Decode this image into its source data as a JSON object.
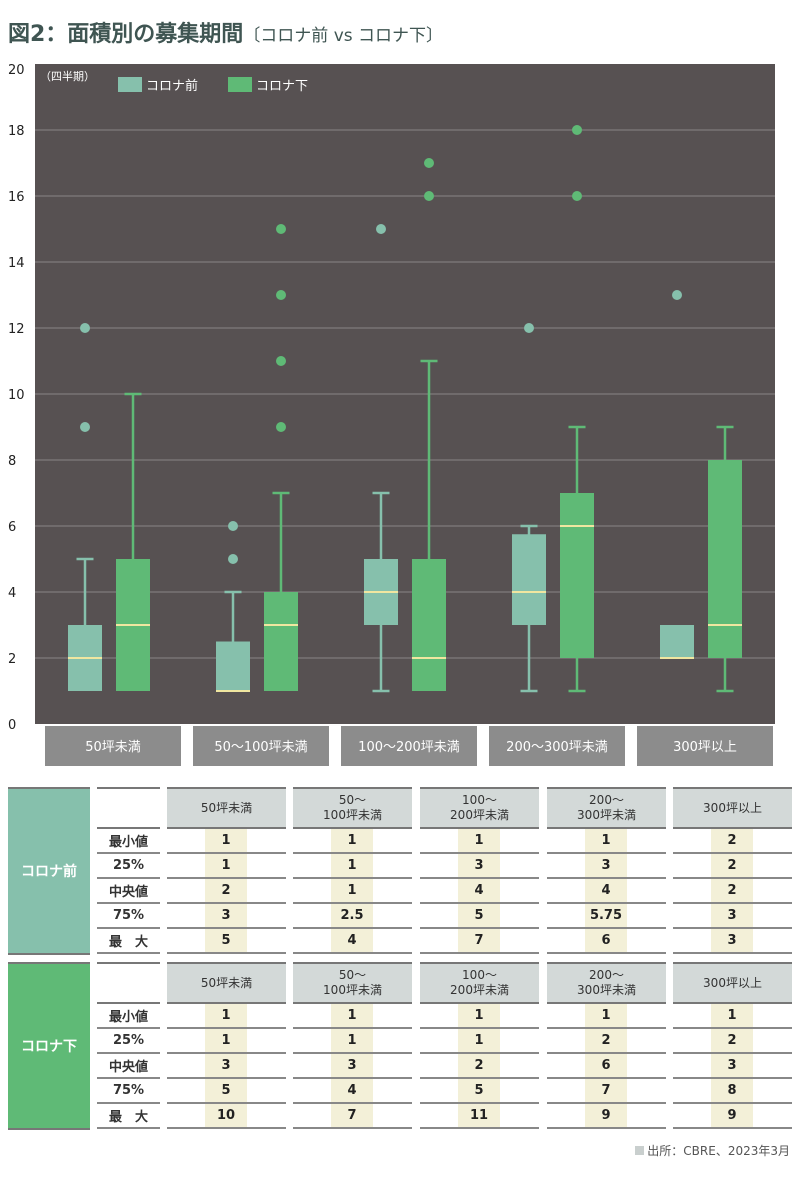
{
  "title": {
    "main": "図2：面積別の募集期間",
    "sub": "〔コロナ前 vs コロナ下〕"
  },
  "colors": {
    "pre": "#86c0ac",
    "post": "#5fba76",
    "median": "#f0e6a0",
    "background": "#575152",
    "grid": "#8a8586",
    "category_box": "#8c8c8c",
    "pre_group": "#86c0ac",
    "post_group": "#5fba76"
  },
  "chart_data": {
    "type": "boxplot",
    "ylabel": "（四半期）",
    "ylim": [
      0,
      20
    ],
    "yticks": [
      0,
      2,
      4,
      6,
      8,
      10,
      12,
      14,
      16,
      18,
      20
    ],
    "grid": true,
    "legend_position": "top-left",
    "categories": [
      "50坪未満",
      "50〜100坪未満",
      "100〜200坪未満",
      "200〜300坪未満",
      "300坪以上"
    ],
    "series": [
      {
        "name": "コロナ前",
        "min": [
          1,
          1,
          1,
          1,
          2
        ],
        "q1": [
          1,
          1,
          3,
          3,
          2
        ],
        "median": [
          2,
          1,
          4,
          4,
          2
        ],
        "q3": [
          3,
          2.5,
          5,
          5.75,
          3
        ],
        "max": [
          5,
          4,
          7,
          6,
          3
        ],
        "outliers": [
          [
            9,
            12
          ],
          [
            5,
            6
          ],
          [
            15
          ],
          [
            12
          ],
          [
            13
          ]
        ]
      },
      {
        "name": "コロナ下",
        "min": [
          1,
          1,
          1,
          1,
          1
        ],
        "q1": [
          1,
          1,
          1,
          2,
          2
        ],
        "median": [
          3,
          3,
          2,
          6,
          3
        ],
        "q3": [
          5,
          4,
          5,
          7,
          8
        ],
        "max": [
          10,
          7,
          11,
          9,
          9
        ],
        "outliers": [
          [],
          [
            9,
            11,
            13,
            15
          ],
          [
            16,
            17
          ],
          [
            16,
            18
          ],
          []
        ]
      }
    ]
  },
  "tables": [
    {
      "group": "コロナ前",
      "headers": [
        "50坪未満",
        "50〜\n100坪未満",
        "100〜\n200坪未満",
        "200〜\n300坪未満",
        "300坪以上"
      ],
      "row_labels": [
        "最小値",
        "25%",
        "中央値",
        "75%",
        "最　大"
      ],
      "rows": [
        [
          "1",
          "1",
          "1",
          "1",
          "2"
        ],
        [
          "1",
          "1",
          "3",
          "3",
          "2"
        ],
        [
          "2",
          "1",
          "4",
          "4",
          "2"
        ],
        [
          "3",
          "2.5",
          "5",
          "5.75",
          "3"
        ],
        [
          "5",
          "4",
          "7",
          "6",
          "3"
        ]
      ]
    },
    {
      "group": "コロナ下",
      "headers": [
        "50坪未満",
        "50〜\n100坪未満",
        "100〜\n200坪未満",
        "200〜\n300坪未満",
        "300坪以上"
      ],
      "row_labels": [
        "最小値",
        "25%",
        "中央値",
        "75%",
        "最　大"
      ],
      "rows": [
        [
          "1",
          "1",
          "1",
          "1",
          "1"
        ],
        [
          "1",
          "1",
          "1",
          "2",
          "2"
        ],
        [
          "3",
          "3",
          "2",
          "6",
          "3"
        ],
        [
          "5",
          "4",
          "5",
          "7",
          "8"
        ],
        [
          "10",
          "7",
          "11",
          "9",
          "9"
        ]
      ]
    }
  ],
  "source": "出所：CBRE、2023年3月"
}
